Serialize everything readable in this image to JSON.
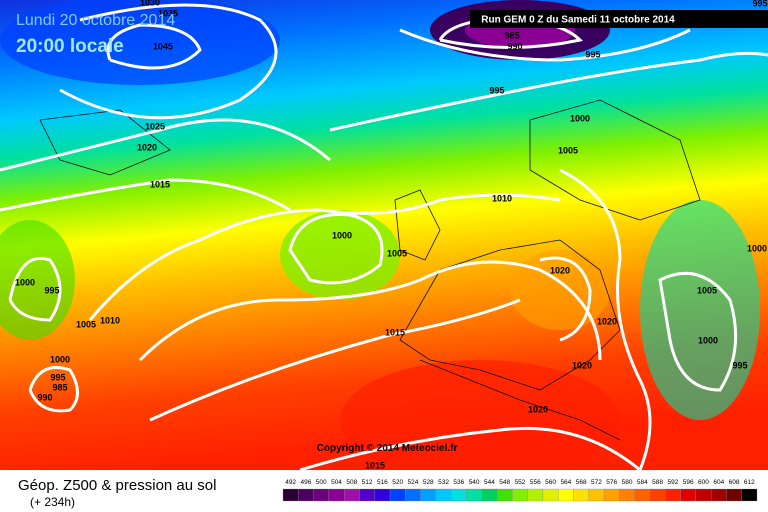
{
  "header": {
    "date": "Lundi 20 octobre 2014",
    "time": "20:00 locale",
    "run": "Run GEM 0 Z du Samedi 11 octobre 2014"
  },
  "copyright": "Copyright © 2014 Meteociel.fr",
  "footer": {
    "title": "Géop. Z500 & pression au sol",
    "lead": "(+ 234h)"
  },
  "isobar_labels": [
    1030,
    1035,
    1045,
    985,
    990,
    995,
    995,
    995,
    1000,
    1005,
    1025,
    1020,
    1015,
    1010,
    1000,
    1005,
    1020,
    1000,
    1000,
    995,
    1005,
    1010,
    1005,
    1020,
    1015,
    1000,
    995,
    1000,
    1020,
    995,
    985,
    990,
    1020,
    1015
  ],
  "legend": {
    "values": [
      492,
      496,
      500,
      504,
      508,
      512,
      516,
      520,
      524,
      528,
      532,
      536,
      540,
      544,
      548,
      552,
      556,
      560,
      564,
      568,
      572,
      576,
      580,
      584,
      588,
      592,
      596,
      600,
      604,
      608,
      612
    ],
    "colors": [
      "#2b0033",
      "#4b0060",
      "#6a007a",
      "#8a0094",
      "#a010a8",
      "#5000c8",
      "#3000e0",
      "#0040ff",
      "#0070ff",
      "#00a0ff",
      "#00c8ff",
      "#00e0e0",
      "#00e0a0",
      "#00d060",
      "#40e000",
      "#80f000",
      "#b0f000",
      "#e0f000",
      "#ffff00",
      "#ffe000",
      "#ffc000",
      "#ffa000",
      "#ff8000",
      "#ff6000",
      "#ff4000",
      "#ff2000",
      "#e00000",
      "#c00000",
      "#a00000",
      "#700000",
      "#000000"
    ]
  }
}
